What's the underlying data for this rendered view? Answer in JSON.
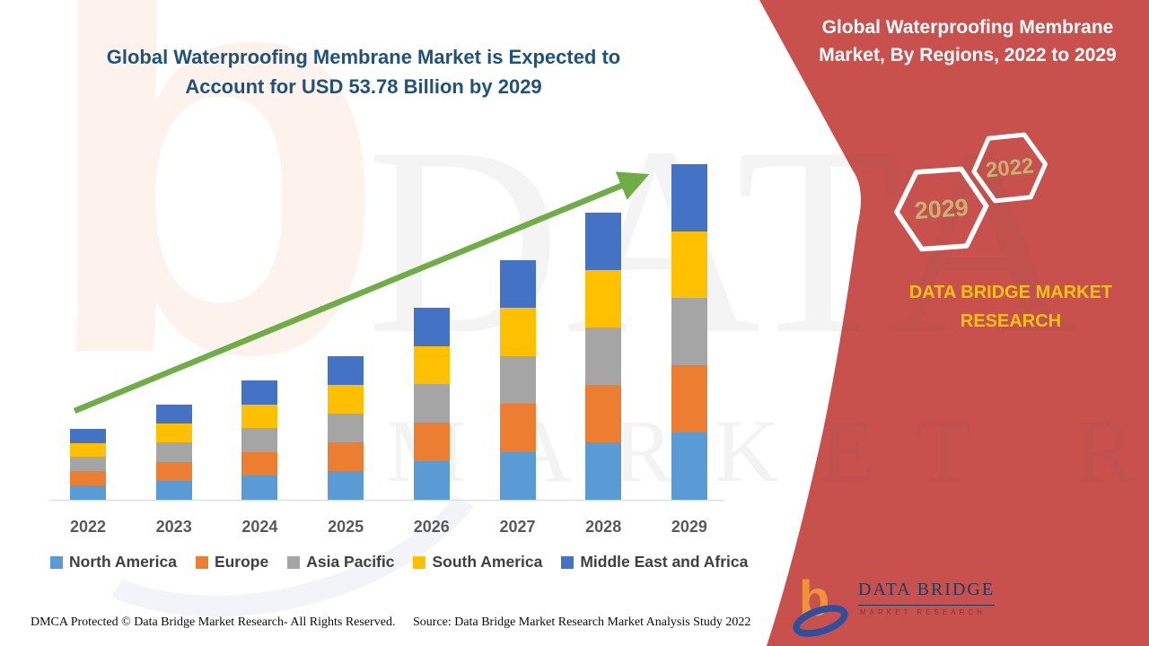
{
  "colors": {
    "panel_red": "#C8514D",
    "brand_yellow": "#F3C313",
    "title_blue": "#20527E",
    "arrow_green": "#6FAD47",
    "axis_gray": "#D9D9D9",
    "label_gray": "#595959",
    "hex_text_gold": "#C7B175"
  },
  "left_title": {
    "line1": "Global Waterproofing Membrane Market is Expected to",
    "line2": "Account for USD 53.78 Billion by 2029"
  },
  "right_panel": {
    "title_line1": "Global Waterproofing Membrane",
    "title_line2": "Market, By Regions, 2022 to 2029",
    "hexagon_front": "2029",
    "hexagon_back": "2022",
    "brand_line1": "DATA BRIDGE MARKET",
    "brand_line2": "RESEARCH"
  },
  "watermark": {
    "line1": "DATA BRIDGE",
    "line2": "MARKET RESEARCH",
    "letter": "b"
  },
  "chart_data": {
    "type": "bar",
    "stacked": true,
    "title": "Global Waterproofing Membrane Market, By Regions, 2022 to 2029",
    "unit": "USD Billion",
    "categories": [
      "2022",
      "2023",
      "2024",
      "2025",
      "2026",
      "2027",
      "2028",
      "2029"
    ],
    "series": [
      {
        "name": "North America",
        "color": "#5B9BD5",
        "values": [
          2.28,
          3.04,
          3.82,
          4.6,
          6.16,
          7.68,
          9.2,
          10.76
        ]
      },
      {
        "name": "Europe",
        "color": "#ED7D31",
        "values": [
          2.28,
          3.04,
          3.82,
          4.6,
          6.16,
          7.68,
          9.2,
          10.76
        ]
      },
      {
        "name": "Asia Pacific",
        "color": "#A5A5A5",
        "values": [
          2.28,
          3.04,
          3.82,
          4.6,
          6.16,
          7.68,
          9.2,
          10.76
        ]
      },
      {
        "name": "South America",
        "color": "#FFC000",
        "values": [
          2.28,
          3.04,
          3.82,
          4.6,
          6.16,
          7.68,
          9.2,
          10.76
        ]
      },
      {
        "name": "Middle East and Africa",
        "color": "#4472C4",
        "values": [
          2.28,
          3.04,
          3.82,
          4.6,
          6.16,
          7.68,
          9.2,
          10.76
        ]
      }
    ],
    "totals": [
      11.4,
      15.2,
      19.1,
      23.0,
      30.8,
      38.4,
      46.0,
      53.78
    ],
    "ylim": [
      0,
      54
    ],
    "gridlines": false,
    "y_axis_visible": false,
    "legend_position": "bottom",
    "annotations": [
      "upward green trend arrow from 2022 to 2029"
    ]
  },
  "footer": {
    "dmca": "DMCA Protected © Data Bridge Market Research- All Rights Reserved.",
    "source": "Source: Data Bridge Market Research Market Analysis Study 2022"
  },
  "logo": {
    "name": "DATA BRIDGE",
    "subtitle": "MARKET RESEARCH"
  }
}
